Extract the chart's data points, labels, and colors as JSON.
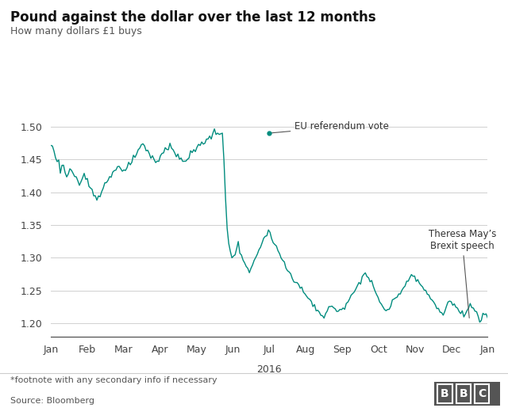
{
  "title": "Pound against the dollar over the last 12 months",
  "subtitle": "How many dollars £1 buys",
  "footnote": "*footnote with any secondary info if necessary",
  "source": "Source: Bloomberg",
  "xlabel_center": "2016",
  "ylim": [
    1.18,
    1.525
  ],
  "yticks": [
    1.2,
    1.25,
    1.3,
    1.35,
    1.4,
    1.45,
    1.5
  ],
  "line_color": "#008c7e",
  "annotation1_text": "EU referendum vote",
  "annotation2_text": "Theresa May’s\nBrexit speech",
  "background_color": "#ffffff",
  "months": [
    "Jan",
    "Feb",
    "Mar",
    "Apr",
    "May",
    "Jun",
    "Jul",
    "Aug",
    "Sep",
    "Oct",
    "Nov",
    "Dec",
    "Jan"
  ],
  "values": [
    1.474,
    1.468,
    1.462,
    1.456,
    1.448,
    1.445,
    1.435,
    1.442,
    1.438,
    1.432,
    1.425,
    1.428,
    1.432,
    1.435,
    1.43,
    1.425,
    1.418,
    1.412,
    1.408,
    1.415,
    1.42,
    1.425,
    1.422,
    1.418,
    1.412,
    1.408,
    1.402,
    1.398,
    1.395,
    1.39,
    1.395,
    1.4,
    1.405,
    1.408,
    1.412,
    1.415,
    1.418,
    1.422,
    1.425,
    1.43,
    1.435,
    1.438,
    1.44,
    1.438,
    1.435,
    1.432,
    1.428,
    1.432,
    1.435,
    1.44,
    1.445,
    1.448,
    1.452,
    1.455,
    1.458,
    1.462,
    1.465,
    1.468,
    1.47,
    1.468,
    1.465,
    1.462,
    1.458,
    1.455,
    1.452,
    1.448,
    1.445,
    1.448,
    1.45,
    1.455,
    1.458,
    1.462,
    1.465,
    1.468,
    1.47,
    1.472,
    1.468,
    1.465,
    1.462,
    1.458,
    1.455,
    1.452,
    1.448,
    1.445,
    1.448,
    1.45,
    1.452,
    1.455,
    1.458,
    1.46,
    1.462,
    1.465,
    1.468,
    1.47,
    1.472,
    1.474,
    1.476,
    1.478,
    1.48,
    1.482,
    1.484,
    1.486,
    1.488,
    1.49,
    1.488,
    1.442,
    1.38,
    1.34,
    1.32,
    1.315,
    1.305,
    1.298,
    1.292,
    1.288,
    1.295,
    1.302,
    1.308,
    1.315,
    1.32,
    1.312,
    1.305,
    1.298,
    1.292,
    1.285,
    1.28,
    1.278,
    1.282,
    1.288,
    1.295,
    1.302,
    1.308,
    1.315,
    1.318,
    1.322,
    1.328,
    1.332,
    1.335,
    1.338,
    1.335,
    1.33,
    1.325,
    1.32,
    1.315,
    1.31,
    1.305,
    1.3,
    1.295,
    1.29,
    1.285,
    1.28,
    1.278,
    1.275,
    1.272,
    1.268,
    1.265,
    1.262,
    1.258,
    1.255,
    1.252,
    1.248,
    1.245,
    1.242,
    1.238,
    1.235,
    1.232,
    1.228,
    1.225,
    1.222,
    1.22,
    1.218,
    1.215,
    1.212,
    1.21,
    1.215,
    1.218,
    1.222,
    1.225,
    1.228,
    1.225,
    1.222,
    1.218,
    1.215,
    1.218,
    1.222,
    1.225,
    1.228,
    1.232,
    1.235,
    1.238,
    1.242,
    1.245,
    1.248,
    1.252,
    1.258,
    1.262,
    1.268,
    1.272,
    1.275,
    1.278,
    1.272,
    1.268,
    1.265,
    1.26,
    1.255,
    1.25,
    1.245,
    1.24,
    1.235,
    1.23,
    1.225,
    1.22,
    1.218,
    1.222,
    1.225,
    1.228,
    1.232,
    1.235,
    1.238,
    1.242,
    1.245,
    1.248,
    1.252,
    1.255,
    1.258,
    1.262,
    1.268,
    1.272,
    1.278,
    1.275,
    1.272,
    1.268,
    1.265,
    1.262,
    1.258,
    1.255,
    1.252,
    1.248,
    1.245,
    1.242,
    1.238,
    1.235,
    1.232,
    1.228,
    1.225,
    1.222,
    1.218,
    1.215,
    1.218,
    1.222,
    1.225,
    1.228,
    1.232,
    1.235,
    1.232,
    1.228,
    1.225,
    1.222,
    1.218,
    1.215,
    1.212,
    1.21,
    1.215,
    1.22,
    1.225,
    1.228,
    1.225,
    1.222,
    1.218,
    1.215,
    1.21,
    1.205,
    1.208,
    1.212,
    1.215,
    1.218,
    1.21
  ]
}
